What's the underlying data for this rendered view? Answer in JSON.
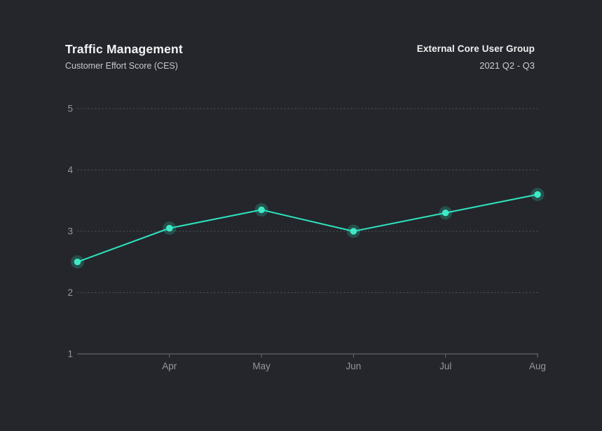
{
  "header": {
    "title": "Traffic Management",
    "subtitle": "Customer Effort Score (CES)",
    "group": "External Core User Group",
    "period": "2021 Q2 - Q3"
  },
  "chart_data": {
    "type": "line",
    "title": "Traffic Management",
    "subtitle": "Customer Effort Score (CES)",
    "series": [
      {
        "name": "Customer Effort Score (CES)",
        "x_labels": [
          "",
          "Apr",
          "May",
          "Jun",
          "Jul",
          "Aug"
        ],
        "values": [
          2.5,
          3.05,
          3.35,
          3.0,
          3.3,
          3.6
        ]
      }
    ],
    "ylim": [
      1,
      5
    ],
    "y_ticks": [
      1,
      2,
      3,
      4,
      5
    ],
    "grid": "horizontal-dotted",
    "legend_position": "none",
    "colors": {
      "background": "#24262c",
      "line": "#2ee3bd",
      "point": "#3ee9c6",
      "point_halo": "rgba(46,227,189,0.22)",
      "gridline": "#56595e",
      "axis_line": "#6e7175",
      "axis_label": "#94979b"
    }
  }
}
